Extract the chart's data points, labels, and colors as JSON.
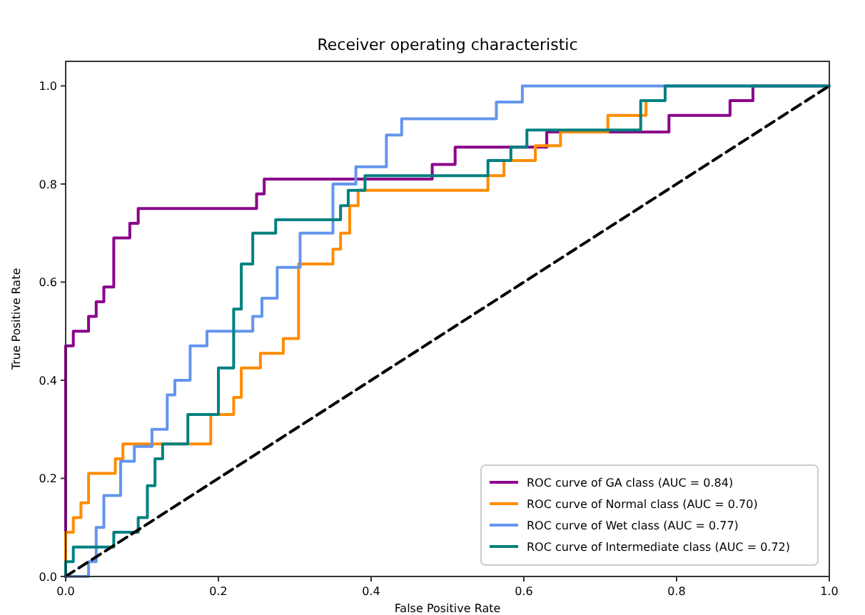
{
  "chart_data": {
    "type": "line",
    "title": "Receiver operating characteristic",
    "xlabel": "False Positive Rate",
    "ylabel": "True Positive Rate",
    "xlim": [
      0,
      1
    ],
    "ylim": [
      0,
      1.05
    ],
    "xticks": [
      {
        "value": 0,
        "label": "0.0"
      },
      {
        "value": 0.2,
        "label": "0.2"
      },
      {
        "value": 0.4,
        "label": "0.4"
      },
      {
        "value": 0.6,
        "label": "0.6"
      },
      {
        "value": 0.8,
        "label": "0.8"
      },
      {
        "value": 1,
        "label": "1.0"
      }
    ],
    "yticks": [
      {
        "value": 0,
        "label": "0.0"
      },
      {
        "value": 0.2,
        "label": "0.2"
      },
      {
        "value": 0.4,
        "label": "0.4"
      },
      {
        "value": 0.6,
        "label": "0.6"
      },
      {
        "value": 0.8,
        "label": "0.8"
      },
      {
        "value": 1,
        "label": "1.0"
      }
    ],
    "legend": "bottom right",
    "line_style": "solid",
    "marker": "none",
    "series": [
      {
        "name": "ROC curve of GA class (AUC = 0.84)",
        "color": "#8b008b",
        "x": [
          0,
          0,
          0.01,
          0.01,
          0.03,
          0.03,
          0.04,
          0.04,
          0.05,
          0.05,
          0.063,
          0.063,
          0.084,
          0.084,
          0.095,
          0.095,
          0.25,
          0.25,
          0.26,
          0.26,
          0.48,
          0.48,
          0.51,
          0.51,
          0.63,
          0.63,
          0.79,
          0.79,
          0.87,
          0.87,
          0.9,
          0.9,
          1
        ],
        "values": [
          0,
          0.47,
          0.47,
          0.5,
          0.5,
          0.53,
          0.53,
          0.56,
          0.56,
          0.59,
          0.59,
          0.69,
          0.69,
          0.72,
          0.72,
          0.75,
          0.75,
          0.78,
          0.78,
          0.81,
          0.81,
          0.84,
          0.84,
          0.875,
          0.875,
          0.906,
          0.906,
          0.94,
          0.94,
          0.97,
          0.97,
          1,
          1
        ]
      },
      {
        "name": "ROC curve of Normal class (AUC = 0.70)",
        "color": "#ff8c00",
        "x": [
          0,
          0,
          0.01,
          0.01,
          0.02,
          0.02,
          0.03,
          0.03,
          0.065,
          0.065,
          0.075,
          0.075,
          0.19,
          0.19,
          0.22,
          0.22,
          0.23,
          0.23,
          0.255,
          0.255,
          0.285,
          0.285,
          0.305,
          0.305,
          0.35,
          0.35,
          0.36,
          0.36,
          0.372,
          0.372,
          0.383,
          0.383,
          0.553,
          0.553,
          0.574,
          0.574,
          0.615,
          0.615,
          0.648,
          0.648,
          0.71,
          0.71,
          0.76,
          0.76
        ],
        "values": [
          0,
          0.09,
          0.09,
          0.12,
          0.12,
          0.15,
          0.15,
          0.21,
          0.21,
          0.24,
          0.24,
          0.27,
          0.27,
          0.33,
          0.33,
          0.365,
          0.365,
          0.425,
          0.425,
          0.455,
          0.455,
          0.485,
          0.485,
          0.637,
          0.637,
          0.667,
          0.667,
          0.7,
          0.7,
          0.756,
          0.756,
          0.787,
          0.787,
          0.817,
          0.817,
          0.848,
          0.848,
          0.878,
          0.878,
          0.906,
          0.906,
          0.94,
          0.94,
          0.97
        ]
      },
      {
        "name": "ROC curve of Wet class (AUC = 0.77)",
        "color": "#6495ed",
        "x": [
          0,
          0.03,
          0.03,
          0.04,
          0.04,
          0.05,
          0.05,
          0.072,
          0.072,
          0.09,
          0.09,
          0.113,
          0.113,
          0.133,
          0.133,
          0.143,
          0.143,
          0.163,
          0.163,
          0.185,
          0.185,
          0.245,
          0.245,
          0.257,
          0.257,
          0.277,
          0.277,
          0.307,
          0.307,
          0.35,
          0.35,
          0.38,
          0.38,
          0.42,
          0.42,
          0.44,
          0.44,
          0.564,
          0.564,
          0.598,
          0.598,
          1
        ],
        "values": [
          0,
          0,
          0.03,
          0.03,
          0.1,
          0.1,
          0.165,
          0.165,
          0.235,
          0.235,
          0.265,
          0.265,
          0.3,
          0.3,
          0.37,
          0.37,
          0.4,
          0.4,
          0.47,
          0.47,
          0.5,
          0.5,
          0.53,
          0.53,
          0.567,
          0.567,
          0.63,
          0.63,
          0.7,
          0.7,
          0.8,
          0.8,
          0.835,
          0.835,
          0.9,
          0.9,
          0.933,
          0.933,
          0.967,
          0.967,
          1,
          1
        ]
      },
      {
        "name": "ROC curve of Intermediate class (AUC = 0.72)",
        "color": "#008080",
        "x": [
          0,
          0,
          0.01,
          0.01,
          0.063,
          0.063,
          0.095,
          0.095,
          0.107,
          0.107,
          0.117,
          0.117,
          0.127,
          0.127,
          0.16,
          0.16,
          0.2,
          0.2,
          0.22,
          0.22,
          0.23,
          0.23,
          0.245,
          0.245,
          0.275,
          0.275,
          0.36,
          0.36,
          0.37,
          0.37,
          0.392,
          0.392,
          0.553,
          0.553,
          0.583,
          0.583,
          0.604,
          0.604,
          0.753,
          0.753,
          0.785,
          0.785,
          1
        ],
        "values": [
          0,
          0.03,
          0.03,
          0.06,
          0.06,
          0.09,
          0.09,
          0.12,
          0.12,
          0.185,
          0.185,
          0.24,
          0.24,
          0.27,
          0.27,
          0.33,
          0.33,
          0.425,
          0.425,
          0.545,
          0.545,
          0.637,
          0.637,
          0.7,
          0.7,
          0.727,
          0.727,
          0.756,
          0.756,
          0.787,
          0.787,
          0.817,
          0.817,
          0.848,
          0.848,
          0.875,
          0.875,
          0.91,
          0.91,
          0.97,
          0.97,
          1,
          1
        ]
      },
      {
        "color": "#000000",
        "line_style": "dashed",
        "x": [
          0,
          1
        ],
        "values": [
          0,
          1
        ]
      }
    ]
  }
}
